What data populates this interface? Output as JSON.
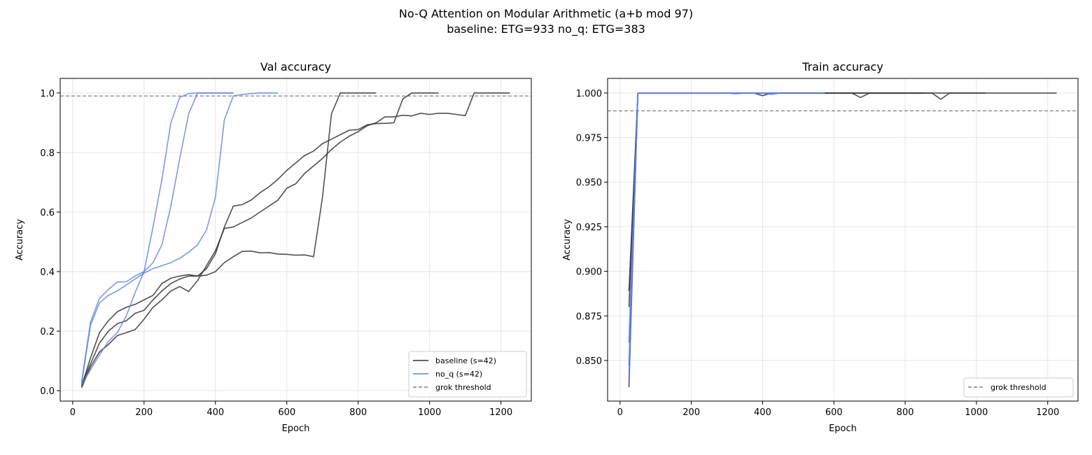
{
  "figure": {
    "title_line1": "No-Q Attention on Modular Arithmetic (a+b mod 97)",
    "title_line2": "baseline: ETG=933  no_q: ETG=383"
  },
  "colors": {
    "baseline": "#333333",
    "no_q": "#5b7fe6",
    "threshold": "#808080"
  },
  "chart_data": [
    {
      "type": "line",
      "title": "Val accuracy",
      "xlabel": "Epoch",
      "ylabel": "Accuracy",
      "xlim": [
        -35,
        1285
      ],
      "ylim": [
        -0.035,
        1.049
      ],
      "xticks": [
        0,
        200,
        400,
        600,
        800,
        1000,
        1200
      ],
      "yticks": [
        0.0,
        0.2,
        0.4,
        0.6,
        0.8,
        1.0
      ],
      "ytick_labels": [
        "0.0",
        "0.2",
        "0.4",
        "0.6",
        "0.8",
        "1.0"
      ],
      "grid": true,
      "legend_position": "lower-right",
      "legend": [
        "baseline (s=42)",
        "no_q (s=42)",
        "grok threshold"
      ],
      "threshold": 0.99,
      "x_start": 25,
      "x_step": 25,
      "series": [
        {
          "group": "baseline",
          "values": [
            0.02,
            0.09,
            0.16,
            0.2,
            0.225,
            0.235,
            0.26,
            0.27,
            0.305,
            0.335,
            0.36,
            0.375,
            0.385,
            0.385,
            0.388,
            0.4,
            0.43,
            0.45,
            0.468,
            0.469,
            0.463,
            0.464,
            0.459,
            0.458,
            0.455,
            0.456,
            0.45,
            0.65,
            0.93,
            1.0,
            1.0,
            1.0,
            1.0,
            1.0
          ]
        },
        {
          "group": "baseline",
          "values": [
            0.015,
            0.11,
            0.195,
            0.235,
            0.265,
            0.28,
            0.29,
            0.305,
            0.32,
            0.36,
            0.378,
            0.385,
            0.39,
            0.385,
            0.41,
            0.46,
            0.55,
            0.62,
            0.625,
            0.64,
            0.665,
            0.685,
            0.71,
            0.74,
            0.765,
            0.79,
            0.805,
            0.83,
            0.845,
            0.86,
            0.875,
            0.877,
            0.893,
            0.897,
            0.898,
            0.9,
            0.98,
            1.0,
            1.0,
            1.0,
            1.0
          ]
        },
        {
          "group": "baseline",
          "values": [
            0.01,
            0.08,
            0.13,
            0.155,
            0.185,
            0.195,
            0.205,
            0.24,
            0.28,
            0.305,
            0.335,
            0.35,
            0.333,
            0.37,
            0.42,
            0.47,
            0.545,
            0.55,
            0.565,
            0.58,
            0.6,
            0.62,
            0.64,
            0.68,
            0.695,
            0.73,
            0.755,
            0.78,
            0.81,
            0.835,
            0.855,
            0.87,
            0.89,
            0.9,
            0.92,
            0.92,
            0.925,
            0.923,
            0.932,
            0.928,
            0.932,
            0.932,
            0.928,
            0.924,
            1.0,
            1.0,
            1.0,
            1.0,
            1.0
          ]
        },
        {
          "group": "no_q",
          "values": [
            0.02,
            0.07,
            0.12,
            0.165,
            0.195,
            0.25,
            0.33,
            0.4,
            0.55,
            0.71,
            0.9,
            0.985,
            0.998,
            1.0,
            1.0,
            1.0,
            1.0,
            1.0
          ]
        },
        {
          "group": "no_q",
          "values": [
            0.03,
            0.23,
            0.31,
            0.34,
            0.365,
            0.366,
            0.385,
            0.4,
            0.43,
            0.49,
            0.62,
            0.78,
            0.93,
            1.0,
            1.0,
            1.0,
            1.0,
            1.0
          ]
        },
        {
          "group": "no_q",
          "values": [
            0.025,
            0.22,
            0.295,
            0.32,
            0.335,
            0.355,
            0.375,
            0.395,
            0.41,
            0.42,
            0.43,
            0.445,
            0.465,
            0.49,
            0.54,
            0.65,
            0.91,
            0.99,
            0.995,
            0.998,
            1.0,
            1.0,
            1.0
          ]
        }
      ]
    },
    {
      "type": "line",
      "title": "Train accuracy",
      "xlabel": "Epoch",
      "ylabel": "Accuracy",
      "xlim": [
        -35,
        1285
      ],
      "ylim": [
        0.8272,
        1.0082
      ],
      "xticks": [
        0,
        200,
        400,
        600,
        800,
        1000,
        1200
      ],
      "yticks": [
        0.85,
        0.875,
        0.9,
        0.925,
        0.95,
        0.975,
        1.0
      ],
      "ytick_labels": [
        "0.850",
        "0.875",
        "0.900",
        "0.925",
        "0.950",
        "0.975",
        "1.000"
      ],
      "grid": true,
      "legend_position": "lower-right",
      "legend": [
        "grok threshold"
      ],
      "threshold": 0.99,
      "x_start": 25,
      "x_step": 25,
      "series": [
        {
          "group": "baseline",
          "values": [
            0.889,
            1,
            1,
            1,
            1,
            1,
            1,
            1,
            1,
            1,
            1,
            1,
            1,
            1,
            1,
            1,
            1,
            1,
            1,
            1,
            1,
            1,
            1,
            1,
            1,
            1,
            0.9975,
            1,
            1,
            1,
            1,
            1,
            1,
            1
          ]
        },
        {
          "group": "baseline",
          "values": [
            0.88,
            1,
            1,
            1,
            1,
            1,
            1,
            1,
            1,
            1,
            1,
            1,
            1,
            1,
            1,
            1,
            1,
            1,
            1,
            1,
            1,
            1,
            1,
            1,
            1,
            1,
            1,
            1,
            1,
            1,
            1,
            1,
            1,
            1,
            1,
            0.9965,
            1,
            1,
            1,
            1,
            1
          ]
        },
        {
          "group": "baseline",
          "values": [
            0.835,
            1,
            1,
            1,
            1,
            1,
            1,
            1,
            1,
            1,
            1,
            1,
            1,
            1,
            1,
            0.9985,
            1,
            1,
            1,
            1,
            1,
            1,
            1,
            1,
            1,
            1,
            1,
            1,
            1,
            1,
            1,
            1,
            1,
            1,
            1,
            1,
            1,
            1,
            1,
            1,
            1,
            1,
            1,
            1,
            1,
            1,
            1,
            1,
            1
          ]
        },
        {
          "group": "no_q",
          "values": [
            0.86,
            1,
            1,
            1,
            1,
            1,
            1,
            1,
            1,
            1,
            1,
            1,
            0.9996,
            1,
            1,
            1,
            1,
            1
          ]
        },
        {
          "group": "no_q",
          "values": [
            0.847,
            1,
            1,
            1,
            1,
            1,
            1,
            1,
            1,
            1,
            1,
            1,
            1,
            1,
            1,
            1,
            1,
            1
          ]
        },
        {
          "group": "no_q",
          "values": [
            0.84,
            1,
            1,
            1,
            1,
            1,
            1,
            1,
            1,
            1,
            1,
            1,
            1,
            1,
            1,
            1,
            0.9993,
            1,
            1,
            1,
            1,
            1,
            1
          ]
        }
      ]
    }
  ]
}
